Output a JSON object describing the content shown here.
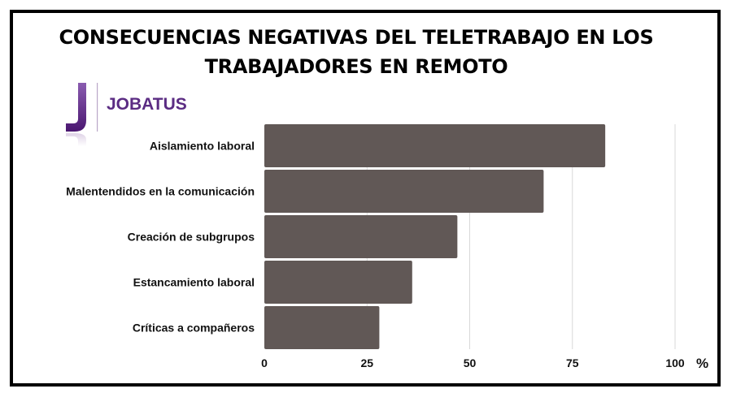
{
  "chart_data": {
    "type": "bar",
    "orientation": "horizontal",
    "title": "CONSECUENCIAS NEGATIVAS DEL TELETRABAJO EN LOS TRABAJADORES EN REMOTO",
    "title_lines": [
      "CONSECUENCIAS NEGATIVAS DEL TELETRABAJO EN LOS",
      "TRABAJADORES EN REMOTO"
    ],
    "categories": [
      "Aislamiento laboral",
      "Malentendidos en la comunicación",
      "Creación de subgrupos",
      "Estancamiento laboral",
      "Críticas a compañeros"
    ],
    "values": [
      83,
      68,
      47,
      36,
      28
    ],
    "xlabel": "%",
    "ylabel": "",
    "xlim": [
      0,
      100
    ],
    "xticks": [
      "0",
      "25",
      "50",
      "75",
      "100"
    ],
    "grid": true,
    "bar_color": "#615856"
  },
  "logo": {
    "text": "JOBATUS",
    "color": "#5b2c83"
  }
}
